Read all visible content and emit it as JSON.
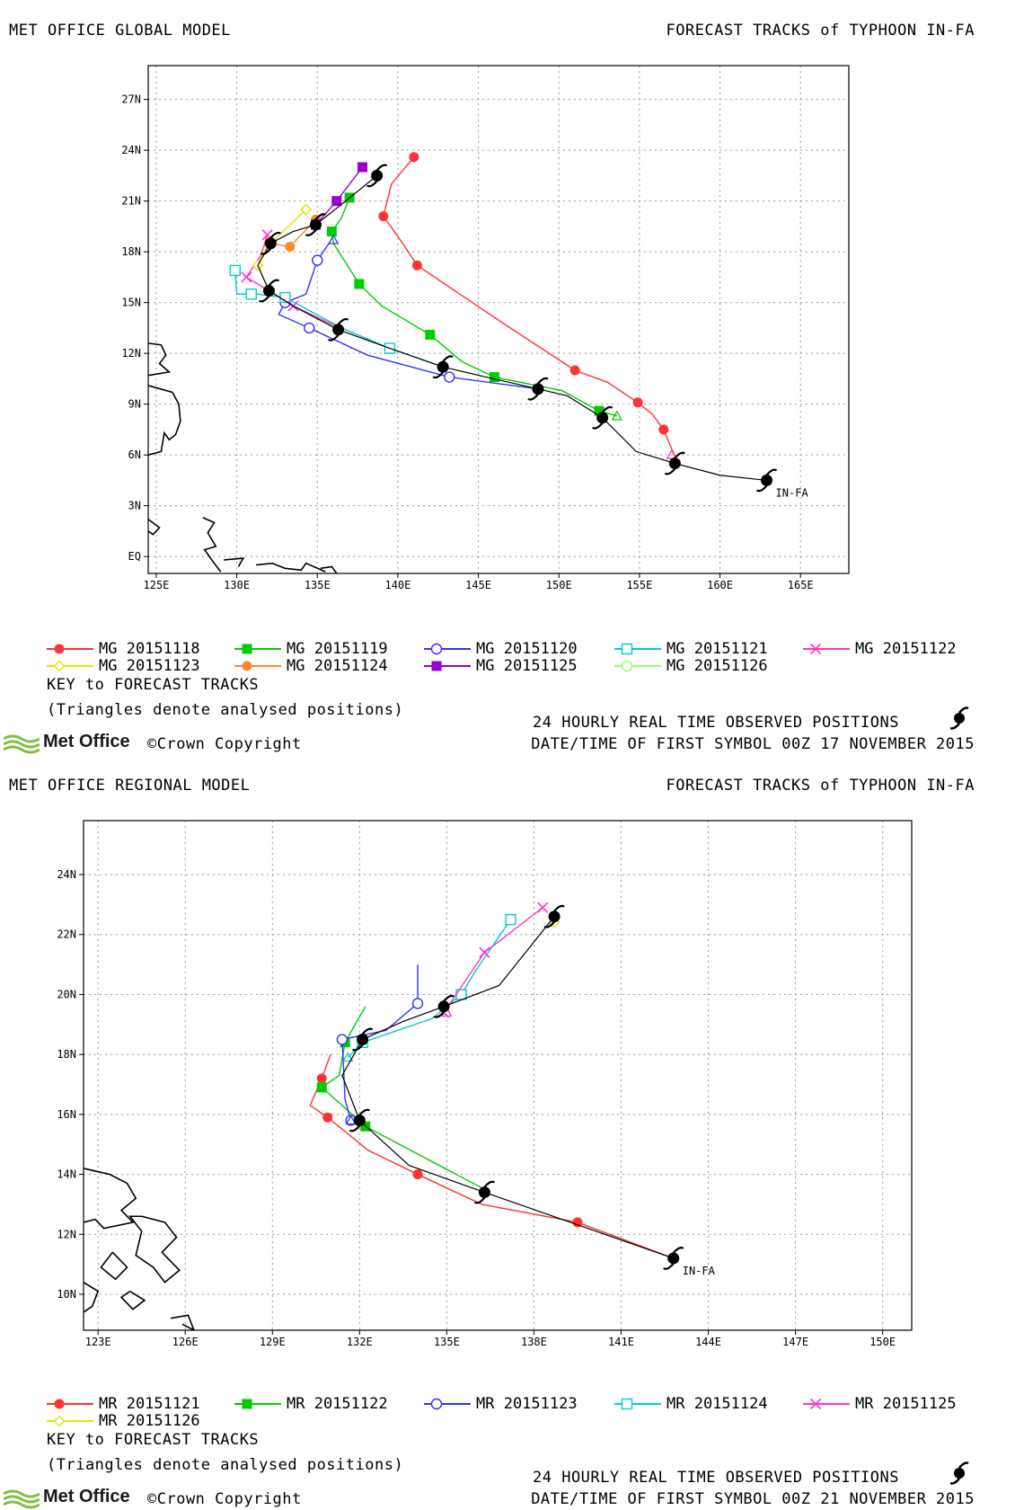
{
  "panels": [
    {
      "model_title": "MET OFFICE GLOBAL MODEL",
      "storm_title": "FORECAST TRACKS of TYPHOON IN-FA",
      "lon_range": [
        124.5,
        168
      ],
      "lat_range": [
        -1,
        29
      ],
      "lon_ticks": [
        {
          "v": 125,
          "label": "125E"
        },
        {
          "v": 130,
          "label": "130E"
        },
        {
          "v": 135,
          "label": "135E"
        },
        {
          "v": 140,
          "label": "140E"
        },
        {
          "v": 145,
          "label": "145E"
        },
        {
          "v": 150,
          "label": "150E"
        },
        {
          "v": 155,
          "label": "155E"
        },
        {
          "v": 160,
          "label": "160E"
        },
        {
          "v": 165,
          "label": "165E"
        }
      ],
      "lat_ticks": [
        {
          "v": 0,
          "label": "EQ"
        },
        {
          "v": 3,
          "label": "3N"
        },
        {
          "v": 6,
          "label": "6N"
        },
        {
          "v": 9,
          "label": "9N"
        },
        {
          "v": 12,
          "label": "12N"
        },
        {
          "v": 15,
          "label": "15N"
        },
        {
          "v": 18,
          "label": "18N"
        },
        {
          "v": 21,
          "label": "21N"
        },
        {
          "v": 24,
          "label": "24N"
        },
        {
          "v": 27,
          "label": "27N"
        }
      ],
      "storm_label": "IN-FA",
      "observed_track": [
        [
          162.9,
          4.5
        ],
        [
          160,
          4.8
        ],
        [
          157.2,
          5.5
        ],
        [
          154.8,
          6.2
        ],
        [
          152.7,
          8.2
        ],
        [
          150.5,
          9.5
        ],
        [
          148.7,
          9.9
        ],
        [
          145.5,
          10.6
        ],
        [
          142.8,
          11.2
        ],
        [
          139.5,
          12.3
        ],
        [
          136.3,
          13.4
        ],
        [
          133.5,
          14.8
        ],
        [
          132.0,
          15.7
        ],
        [
          131.3,
          17.2
        ],
        [
          132.1,
          18.5
        ],
        [
          133.5,
          19.2
        ],
        [
          134.9,
          19.6
        ],
        [
          136.5,
          20.8
        ],
        [
          138.7,
          22.5
        ]
      ],
      "observed_symbols": [
        [
          162.9,
          4.5
        ],
        [
          157.2,
          5.5
        ],
        [
          152.7,
          8.2
        ],
        [
          148.7,
          9.9
        ],
        [
          142.8,
          11.2
        ],
        [
          136.3,
          13.4
        ],
        [
          132.0,
          15.7
        ],
        [
          132.1,
          18.5
        ],
        [
          134.9,
          19.6
        ],
        [
          138.7,
          22.5
        ]
      ],
      "tracks": [
        {
          "name": "MG 20151118",
          "color": "#ff3333",
          "marker": "filled-circle",
          "points": [
            [
              157.2,
              5.9
            ],
            [
              156.5,
              7.5
            ],
            [
              155.8,
              8.4
            ],
            [
              154.9,
              9.1
            ],
            [
              153.0,
              10.3
            ],
            [
              151.0,
              11.0
            ],
            [
              146.5,
              13.8
            ],
            [
              141.2,
              17.2
            ],
            [
              140.3,
              18.5
            ],
            [
              139.1,
              20.1
            ],
            [
              139.6,
              22.0
            ],
            [
              141.0,
              23.6
            ]
          ]
        },
        {
          "name": "MG 20151119",
          "color": "#00cc00",
          "marker": "filled-square",
          "points": [
            [
              153.6,
              8.3
            ],
            [
              152.5,
              8.6
            ],
            [
              150.2,
              9.8
            ],
            [
              146.0,
              10.6
            ],
            [
              144.0,
              11.5
            ],
            [
              142.0,
              13.1
            ],
            [
              139.0,
              14.8
            ],
            [
              137.6,
              16.1
            ],
            [
              136.0,
              18.5
            ],
            [
              135.9,
              19.2
            ],
            [
              136.5,
              20.0
            ],
            [
              137.0,
              21.2
            ]
          ]
        },
        {
          "name": "MG 20151120",
          "color": "#3333ff",
          "marker": "open-circle",
          "points": [
            [
              148.7,
              9.9
            ],
            [
              143.2,
              10.6
            ],
            [
              138.1,
              11.9
            ],
            [
              134.5,
              13.5
            ],
            [
              132.6,
              14.3
            ],
            [
              133.0,
              15.0
            ],
            [
              134.3,
              15.5
            ],
            [
              135.0,
              17.5
            ],
            [
              135.8,
              18.6
            ]
          ]
        },
        {
          "name": "MG 20151121",
          "color": "#00cccc",
          "marker": "open-square",
          "points": [
            [
              142.8,
              11.2
            ],
            [
              139.5,
              12.3
            ],
            [
              136.5,
              13.5
            ],
            [
              133.0,
              15.3
            ],
            [
              131.3,
              15.5
            ],
            [
              130.9,
              15.5
            ],
            [
              130.0,
              15.5
            ],
            [
              129.9,
              16.9
            ]
          ]
        },
        {
          "name": "MG 20151122",
          "color": "#ff33cc",
          "marker": "x",
          "points": [
            [
              136.4,
              13.5
            ],
            [
              133.5,
              14.8
            ],
            [
              132.0,
              15.7
            ],
            [
              130.6,
              16.5
            ],
            [
              131.5,
              17.8
            ],
            [
              131.9,
              19.0
            ]
          ]
        },
        {
          "name": "MG 20151123",
          "color": "#e6e600",
          "marker": "open-diamond",
          "points": [
            [
              132.0,
              15.7
            ],
            [
              131.3,
              17.2
            ],
            [
              131.8,
              18.2
            ],
            [
              132.2,
              18.6
            ],
            [
              133.2,
              19.5
            ],
            [
              134.3,
              20.5
            ]
          ]
        },
        {
          "name": "MG 20151124",
          "color": "#ff8833",
          "marker": "filled-circle",
          "points": [
            [
              132.1,
              18.5
            ],
            [
              133.3,
              18.3
            ],
            [
              134.9,
              19.9
            ]
          ]
        },
        {
          "name": "MG 20151125",
          "color": "#9900cc",
          "marker": "filled-square",
          "points": [
            [
              134.9,
              19.6
            ],
            [
              136.2,
              21.0
            ],
            [
              137.8,
              23.0
            ]
          ]
        },
        {
          "name": "MG 20151126",
          "color": "#99ff66",
          "marker": "open-circle",
          "points": [
            [
              138.7,
              22.5
            ]
          ]
        }
      ],
      "analysed_triangles": [
        {
          "color": "#00cc00",
          "pt": [
            153.6,
            8.3
          ]
        },
        {
          "color": "#3333ff",
          "pt": [
            136.0,
            18.7
          ]
        },
        {
          "color": "#ff33cc",
          "pt": [
            157.0,
            6.0
          ]
        }
      ],
      "legend_rows": [
        [
          {
            "name": "MG 20151118",
            "color": "#ff3333",
            "marker": "filled-circle"
          },
          {
            "name": "MG 20151119",
            "color": "#00cc00",
            "marker": "filled-square"
          },
          {
            "name": "MG 20151120",
            "color": "#3333ff",
            "marker": "open-circle"
          },
          {
            "name": "MG 20151121",
            "color": "#00cccc",
            "marker": "open-square"
          },
          {
            "name": "MG 20151122",
            "color": "#ff33cc",
            "marker": "x"
          }
        ],
        [
          {
            "name": "MG 20151123",
            "color": "#e6e600",
            "marker": "open-diamond"
          },
          {
            "name": "MG 20151124",
            "color": "#ff8833",
            "marker": "filled-circle"
          },
          {
            "name": "MG 20151125",
            "color": "#9900cc",
            "marker": "filled-square"
          },
          {
            "name": "MG 20151126",
            "color": "#99ff66",
            "marker": "open-circle"
          }
        ]
      ],
      "key_title": "KEY to FORECAST TRACKS",
      "key_note": "(Triangles denote analysed positions)",
      "observed_note": "24 HOURLY REAL TIME OBSERVED POSITIONS",
      "brand": "Met Office",
      "copyright": "©Crown Copyright",
      "first_symbol": "DATE/TIME OF FIRST SYMBOL 00Z 17 NOVEMBER 2015"
    },
    {
      "model_title": "MET OFFICE REGIONAL MODEL",
      "storm_title": "FORECAST TRACKS of TYPHOON IN-FA",
      "lon_range": [
        122.5,
        151
      ],
      "lat_range": [
        8.8,
        25.8
      ],
      "lon_ticks": [
        {
          "v": 123,
          "label": "123E"
        },
        {
          "v": 126,
          "label": "126E"
        },
        {
          "v": 129,
          "label": "129E"
        },
        {
          "v": 132,
          "label": "132E"
        },
        {
          "v": 135,
          "label": "135E"
        },
        {
          "v": 138,
          "label": "138E"
        },
        {
          "v": 141,
          "label": "141E"
        },
        {
          "v": 144,
          "label": "144E"
        },
        {
          "v": 147,
          "label": "147E"
        },
        {
          "v": 150,
          "label": "150E"
        }
      ],
      "lat_ticks": [
        {
          "v": 10,
          "label": "10N"
        },
        {
          "v": 12,
          "label": "12N"
        },
        {
          "v": 14,
          "label": "14N"
        },
        {
          "v": 16,
          "label": "16N"
        },
        {
          "v": 18,
          "label": "18N"
        },
        {
          "v": 20,
          "label": "20N"
        },
        {
          "v": 22,
          "label": "22N"
        },
        {
          "v": 24,
          "label": "24N"
        }
      ],
      "storm_label": "IN-FA",
      "observed_track": [
        [
          142.8,
          11.2
        ],
        [
          136.3,
          13.4
        ],
        [
          133.7,
          14.3
        ],
        [
          132.0,
          15.8
        ],
        [
          131.4,
          17.3
        ],
        [
          132.1,
          18.5
        ],
        [
          133.5,
          19.1
        ],
        [
          134.9,
          19.6
        ],
        [
          136.8,
          20.3
        ],
        [
          138.7,
          22.6
        ]
      ],
      "observed_symbols": [
        [
          142.8,
          11.2
        ],
        [
          136.3,
          13.4
        ],
        [
          132.0,
          15.8
        ],
        [
          132.1,
          18.5
        ],
        [
          134.9,
          19.6
        ],
        [
          138.7,
          22.6
        ]
      ],
      "tracks": [
        {
          "name": "MR 20151121",
          "color": "#ff3333",
          "marker": "filled-circle",
          "points": [
            [
              142.8,
              11.2
            ],
            [
              139.5,
              12.4
            ],
            [
              136.2,
              13.0
            ],
            [
              134.0,
              14.0
            ],
            [
              132.3,
              14.8
            ],
            [
              130.9,
              15.9
            ],
            [
              130.3,
              16.3
            ],
            [
              130.7,
              17.2
            ],
            [
              131.0,
              18.0
            ]
          ]
        },
        {
          "name": "MR 20151122",
          "color": "#00cc00",
          "marker": "filled-square",
          "points": [
            [
              136.3,
              13.5
            ],
            [
              132.2,
              15.6
            ],
            [
              131.4,
              16.3
            ],
            [
              130.7,
              16.9
            ],
            [
              131.3,
              17.3
            ],
            [
              131.5,
              18.4
            ],
            [
              132.2,
              19.6
            ]
          ]
        },
        {
          "name": "MR 20151123",
          "color": "#3333ff",
          "marker": "open-circle",
          "points": [
            [
              132.0,
              15.8
            ],
            [
              131.7,
              15.8
            ],
            [
              131.5,
              16.5
            ],
            [
              131.4,
              18.5
            ],
            [
              132.9,
              18.8
            ],
            [
              134.0,
              19.7
            ],
            [
              134.0,
              21.0
            ]
          ]
        },
        {
          "name": "MR 20151124",
          "color": "#00cccc",
          "marker": "open-square",
          "points": [
            [
              131.6,
              17.9
            ],
            [
              132.1,
              18.4
            ],
            [
              134.5,
              19.2
            ],
            [
              135.5,
              20.0
            ],
            [
              136.0,
              20.8
            ],
            [
              137.2,
              22.5
            ]
          ]
        },
        {
          "name": "MR 20151125",
          "color": "#ff33cc",
          "marker": "x",
          "points": [
            [
              134.9,
              19.4
            ],
            [
              136.3,
              21.4
            ],
            [
              138.3,
              22.9
            ]
          ]
        },
        {
          "name": "MR 20151126",
          "color": "#e6e600",
          "marker": "open-diamond",
          "points": [
            [
              138.7,
              22.4
            ]
          ]
        }
      ],
      "analysed_triangles": [
        {
          "color": "#3333ff",
          "pt": [
            131.7,
            15.8
          ]
        },
        {
          "color": "#00cccc",
          "pt": [
            131.6,
            17.9
          ]
        },
        {
          "color": "#ff33cc",
          "pt": [
            135.0,
            19.4
          ]
        }
      ],
      "legend_rows": [
        [
          {
            "name": "MR 20151121",
            "color": "#ff3333",
            "marker": "filled-circle"
          },
          {
            "name": "MR 20151122",
            "color": "#00cc00",
            "marker": "filled-square"
          },
          {
            "name": "MR 20151123",
            "color": "#3333ff",
            "marker": "open-circle"
          },
          {
            "name": "MR 20151124",
            "color": "#00cccc",
            "marker": "open-square"
          },
          {
            "name": "MR 20151125",
            "color": "#ff33cc",
            "marker": "x"
          }
        ],
        [
          {
            "name": "MR 20151126",
            "color": "#e6e600",
            "marker": "open-diamond"
          }
        ]
      ],
      "key_title": "KEY to FORECAST TRACKS",
      "key_note": "(Triangles denote analysed positions)",
      "observed_note": "24 HOURLY REAL TIME OBSERVED POSITIONS",
      "brand": "Met Office",
      "copyright": "©Crown Copyright",
      "first_symbol": "DATE/TIME OF FIRST SYMBOL 00Z 21 NOVEMBER 2015"
    }
  ]
}
